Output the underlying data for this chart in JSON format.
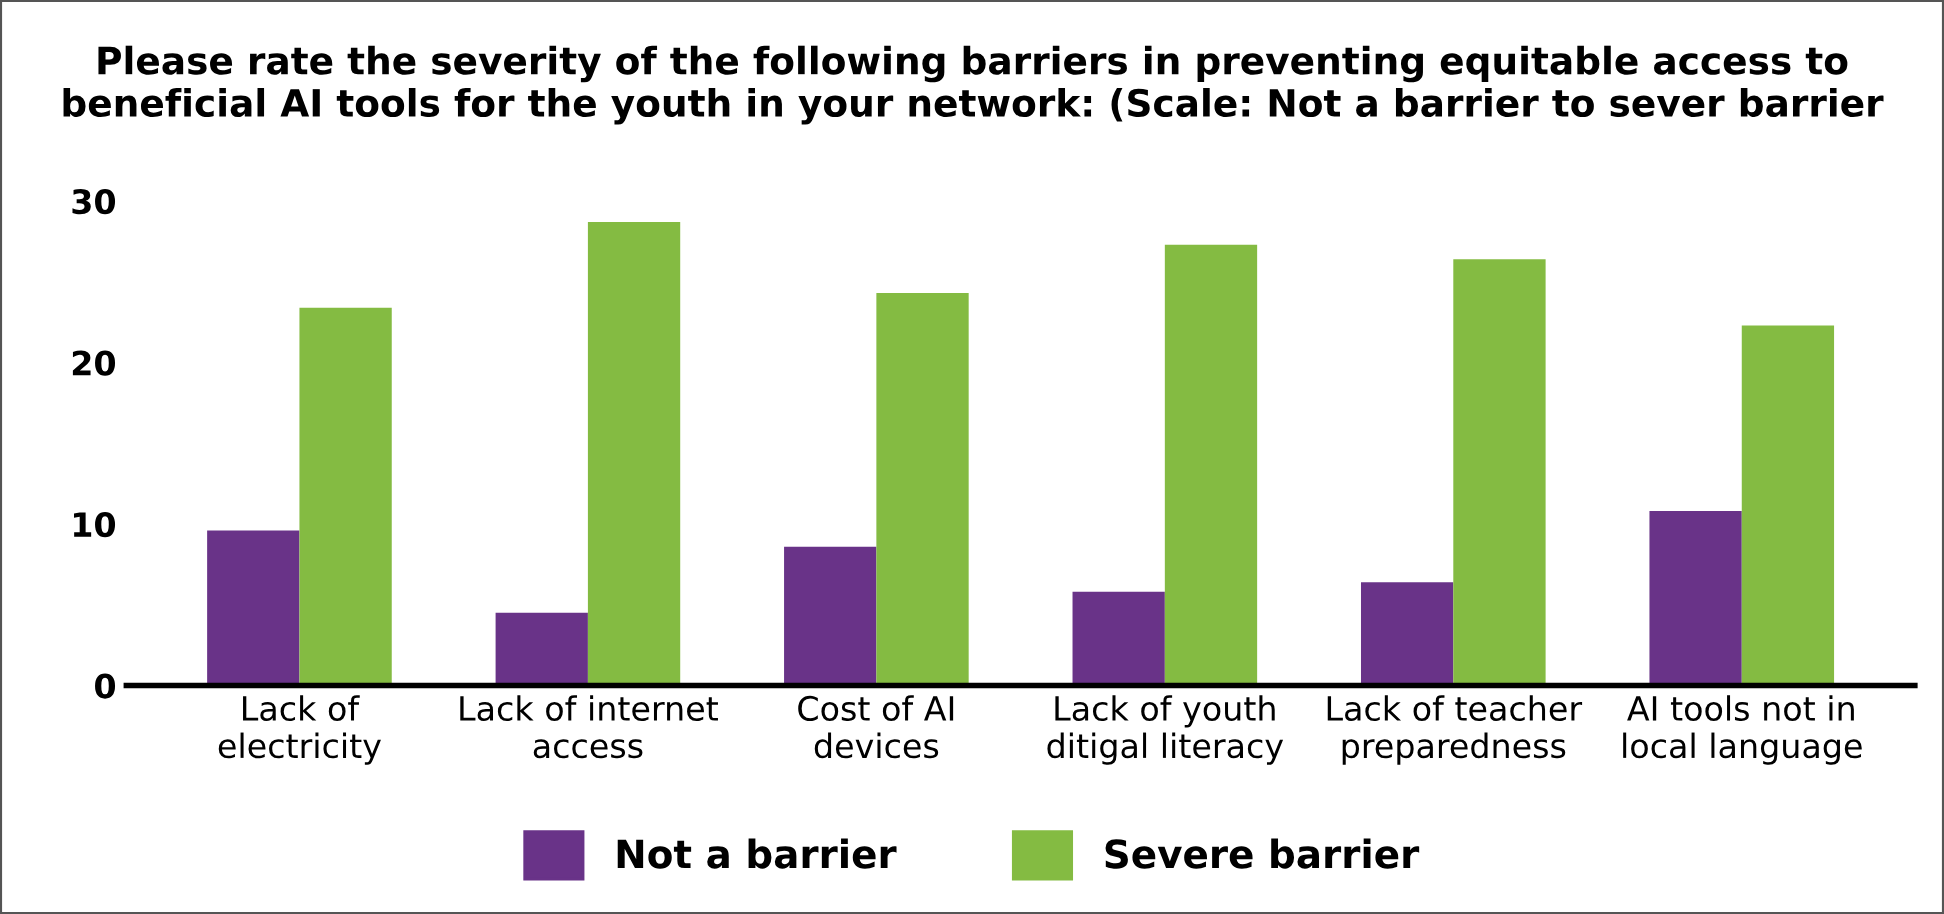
{
  "chart_data": {
    "type": "bar",
    "title": "Please rate the severity of the following barriers in preventing equitable access to\nbeneficial AI tools for the youth in your network: (Scale: Not a barrier to sever barrier",
    "categories": [
      "Lack of\nelectricity",
      "Lack of internet\naccess",
      "Cost of AI\ndevices",
      "Lack of youth\nditigal literacy",
      "Lack of teacher\npreparedness",
      "AI tools not in\nlocal language"
    ],
    "series": [
      {
        "name": "Not a barrier",
        "color": "#693388",
        "values": [
          9.6,
          4.5,
          8.6,
          5.8,
          6.4,
          10.8
        ]
      },
      {
        "name": "Severe barrier",
        "color": "#84bb42",
        "values": [
          23.4,
          28.7,
          24.3,
          27.3,
          26.4,
          22.3
        ]
      }
    ],
    "ylim": [
      0,
      30
    ],
    "yticks": [
      0,
      10,
      20,
      30
    ],
    "grid": false,
    "legend": "bottom"
  }
}
